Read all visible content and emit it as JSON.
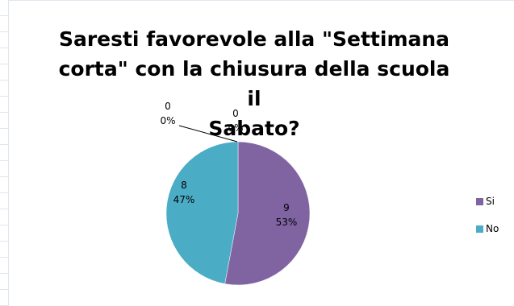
{
  "chart_data": {
    "type": "pie",
    "title": "Saresti favorevole alla \"Settimana corta\" con la chiusura della scuola il Sabato?",
    "title_lines": [
      "Saresti favorevole alla \"Settimana",
      "corta\" con la chiusura della scuola il",
      "Sabato?"
    ],
    "categories": [
      "Si",
      "No",
      "",
      ""
    ],
    "values": [
      9,
      8,
      0,
      0
    ],
    "labels": [
      {
        "value": "9",
        "percent": "53%"
      },
      {
        "value": "8",
        "percent": "47%"
      },
      {
        "value": "0",
        "percent": "0%"
      },
      {
        "value": "0",
        "percent": "0%"
      }
    ],
    "colors": [
      "#8064a2",
      "#4bacc6"
    ],
    "legend": {
      "placement": "right",
      "items": [
        {
          "label": "Si",
          "color": "#8064a2"
        },
        {
          "label": "No",
          "color": "#4bacc6"
        }
      ]
    }
  }
}
